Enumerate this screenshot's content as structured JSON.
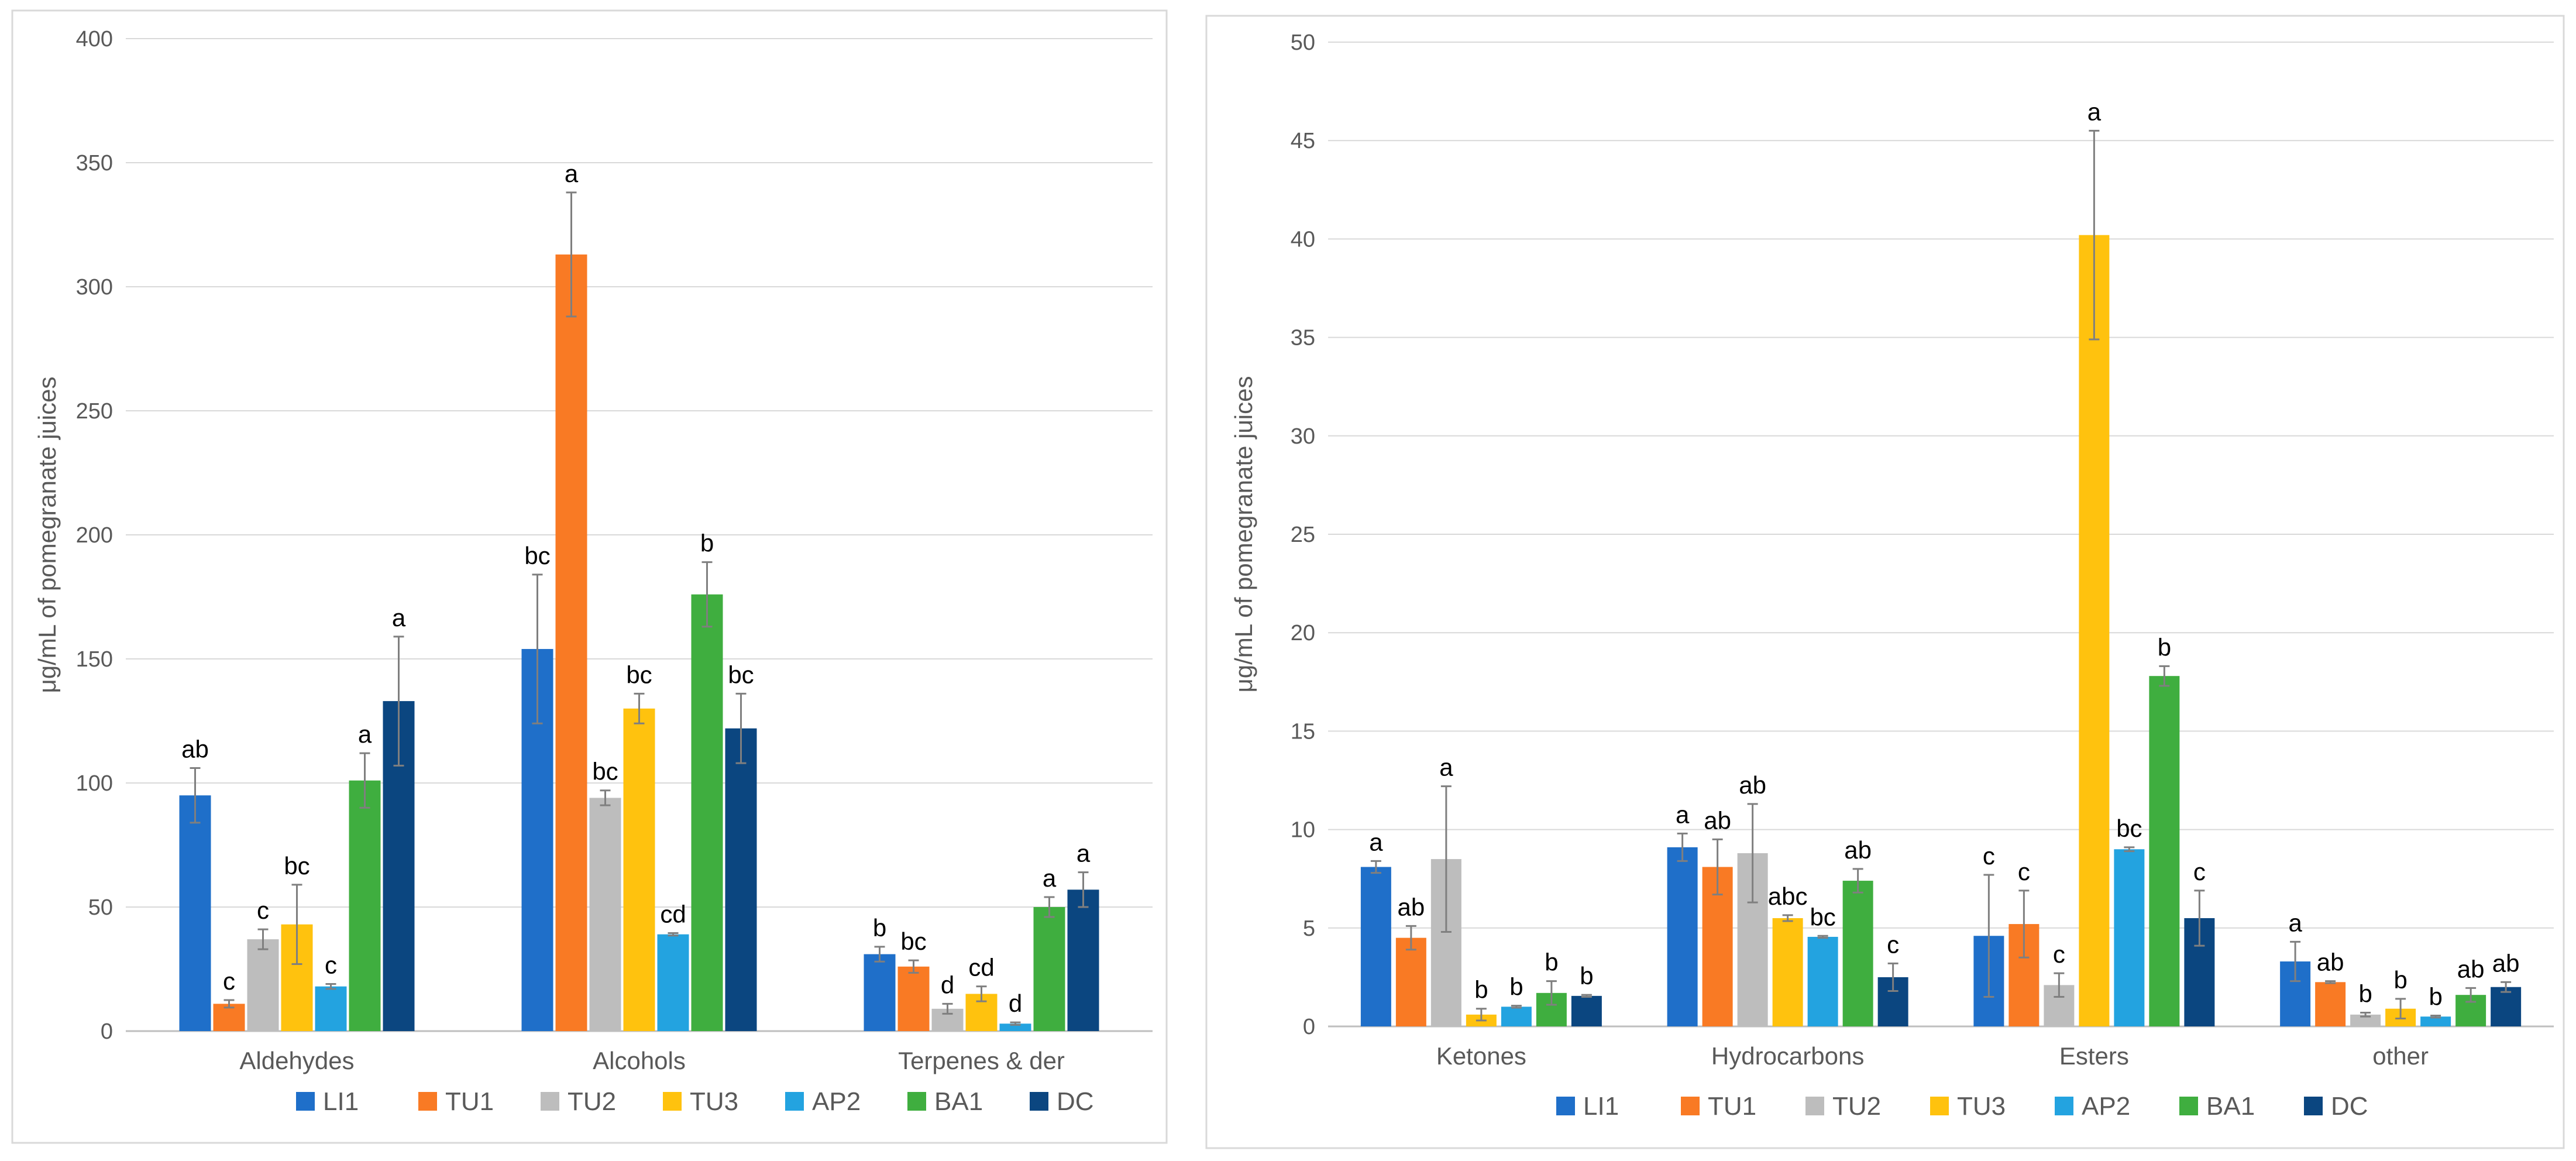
{
  "colors": {
    "LI1": "#1F6FC9",
    "TU1": "#F97A24",
    "TU2": "#BDBDBD",
    "TU3": "#FFC20E",
    "AP2": "#23A3E0",
    "BA1": "#3FAE3F",
    "DC": "#0B4680"
  },
  "chart_data": [
    {
      "type": "bar",
      "title": "",
      "xlabel": "",
      "ylabel": "μg/mL of pomegranate juices",
      "ylim": [
        0,
        400
      ],
      "yticks": [
        0,
        50,
        100,
        150,
        200,
        250,
        300,
        350,
        400
      ],
      "grid": true,
      "legend": "bottom",
      "categories": [
        "Aldehydes",
        "Alcohols",
        "Terpenes & der"
      ],
      "series": [
        {
          "name": "LI1",
          "values": [
            95,
            154,
            31
          ],
          "errors": [
            11,
            30,
            3
          ],
          "letters": [
            "ab",
            "bc",
            "b"
          ]
        },
        {
          "name": "TU1",
          "values": [
            11,
            313,
            26
          ],
          "errors": [
            1.5,
            25,
            2.5
          ],
          "letters": [
            "c",
            "a",
            "bc"
          ]
        },
        {
          "name": "TU2",
          "values": [
            37,
            94,
            9
          ],
          "errors": [
            4,
            3,
            2
          ],
          "letters": [
            "c",
            "bc",
            "d"
          ]
        },
        {
          "name": "TU3",
          "values": [
            43,
            130,
            15
          ],
          "errors": [
            16,
            6,
            3
          ],
          "letters": [
            "bc",
            "bc",
            "cd"
          ]
        },
        {
          "name": "AP2",
          "values": [
            18,
            39,
            3
          ],
          "errors": [
            1,
            0.5,
            0.5
          ],
          "letters": [
            "c",
            "cd",
            "d"
          ]
        },
        {
          "name": "BA1",
          "values": [
            101,
            176,
            50
          ],
          "errors": [
            11,
            13,
            4
          ],
          "letters": [
            "a",
            "b",
            "a"
          ]
        },
        {
          "name": "DC",
          "values": [
            133,
            122,
            57
          ],
          "errors": [
            26,
            14,
            7
          ],
          "letters": [
            "a",
            "bc",
            "a"
          ]
        }
      ]
    },
    {
      "type": "bar",
      "title": "",
      "xlabel": "",
      "ylabel": "μg/mL of pomegranate juices",
      "ylim": [
        0,
        50
      ],
      "yticks": [
        0,
        5,
        10,
        15,
        20,
        25,
        30,
        35,
        40,
        45,
        50
      ],
      "grid": true,
      "legend": "bottom",
      "categories": [
        "Ketones",
        "Hydrocarbons",
        "Esters",
        "other"
      ],
      "series": [
        {
          "name": "LI1",
          "values": [
            8.1,
            9.1,
            4.6,
            3.3
          ],
          "errors": [
            0.3,
            0.7,
            3.1,
            1.0
          ],
          "letters": [
            "a",
            "a",
            "c",
            "a"
          ]
        },
        {
          "name": "TU1",
          "values": [
            4.5,
            8.1,
            5.2,
            2.25
          ],
          "errors": [
            0.6,
            1.4,
            1.7,
            0.05
          ],
          "letters": [
            "ab",
            "ab",
            "c",
            "ab"
          ]
        },
        {
          "name": "TU2",
          "values": [
            8.5,
            8.8,
            2.1,
            0.6
          ],
          "errors": [
            3.7,
            2.5,
            0.6,
            0.1
          ],
          "letters": [
            "a",
            "ab",
            "c",
            "b"
          ]
        },
        {
          "name": "TU3",
          "values": [
            0.6,
            5.5,
            40.2,
            0.9
          ],
          "errors": [
            0.3,
            0.15,
            5.3,
            0.5
          ],
          "letters": [
            "b",
            "abc",
            "a",
            "b"
          ]
        },
        {
          "name": "AP2",
          "values": [
            1.0,
            4.55,
            9.0,
            0.5
          ],
          "errors": [
            0.05,
            0.05,
            0.1,
            0.05
          ],
          "letters": [
            "b",
            "bc",
            "bc",
            "b"
          ]
        },
        {
          "name": "BA1",
          "values": [
            1.7,
            7.4,
            17.8,
            1.6
          ],
          "errors": [
            0.6,
            0.6,
            0.5,
            0.35
          ],
          "letters": [
            "b",
            "ab",
            "b",
            "ab"
          ]
        },
        {
          "name": "DC",
          "values": [
            1.55,
            2.5,
            5.5,
            2.0
          ],
          "errors": [
            0.05,
            0.7,
            1.4,
            0.25
          ],
          "letters": [
            "b",
            "c",
            "c",
            "ab"
          ]
        }
      ]
    }
  ]
}
